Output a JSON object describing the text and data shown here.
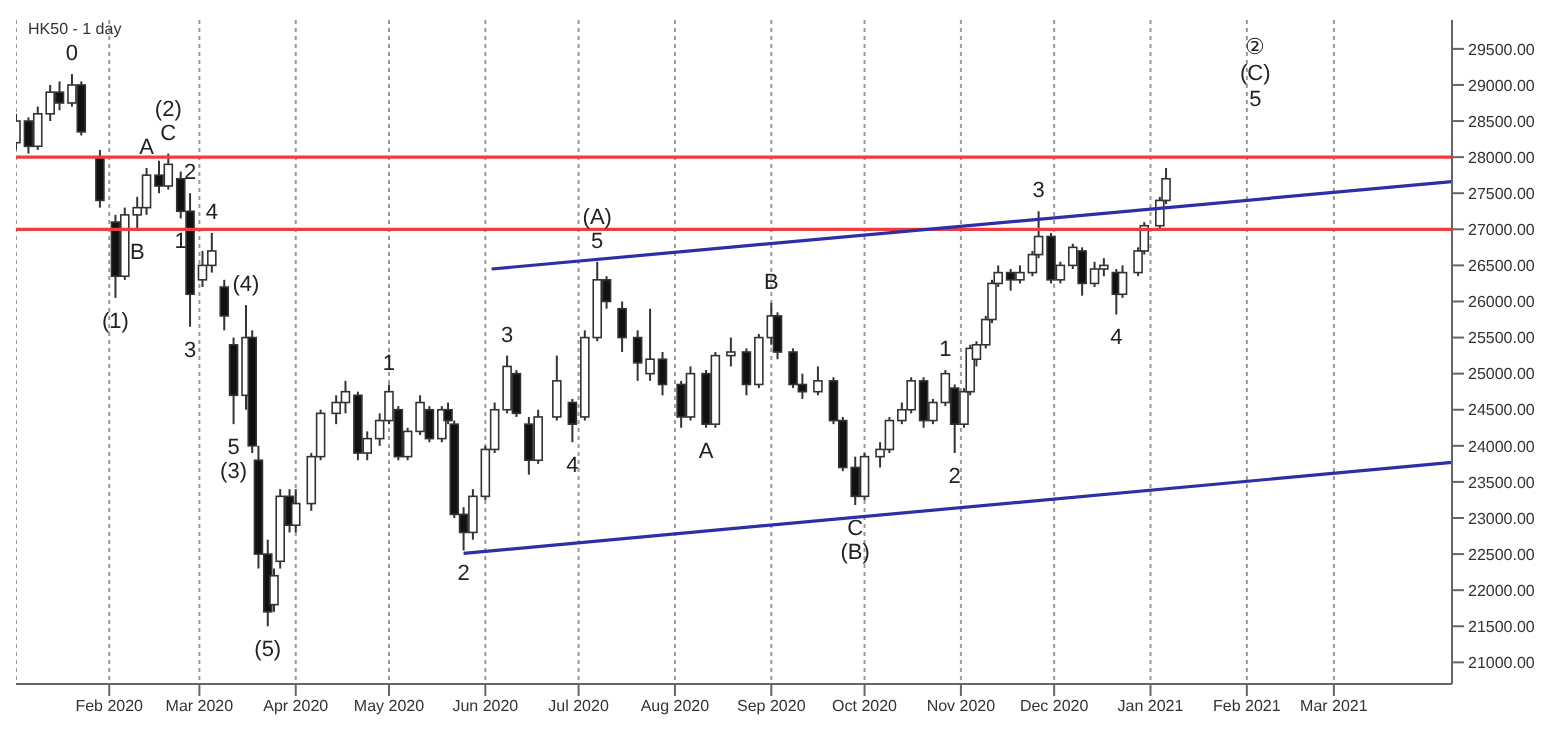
{
  "chart_data": {
    "type": "candlestick",
    "title": "HK50 - 1 day",
    "x": [
      "2020-01-02",
      "2020-01-06",
      "2020-01-09",
      "2020-01-13",
      "2020-01-16",
      "2020-01-20",
      "2020-01-23",
      "2020-01-29",
      "2020-02-03",
      "2020-02-06",
      "2020-02-10",
      "2020-02-13",
      "2020-02-17",
      "2020-02-20",
      "2020-02-24",
      "2020-02-27",
      "2020-03-02",
      "2020-03-05",
      "2020-03-09",
      "2020-03-12",
      "2020-03-16",
      "2020-03-18",
      "2020-03-20",
      "2020-03-23",
      "2020-03-25",
      "2020-03-27",
      "2020-03-30",
      "2020-04-01",
      "2020-04-06",
      "2020-04-09",
      "2020-04-14",
      "2020-04-17",
      "2020-04-21",
      "2020-04-24",
      "2020-04-28",
      "2020-05-01",
      "2020-05-04",
      "2020-05-07",
      "2020-05-11",
      "2020-05-14",
      "2020-05-18",
      "2020-05-20",
      "2020-05-22",
      "2020-05-25",
      "2020-05-28",
      "2020-06-01",
      "2020-06-04",
      "2020-06-08",
      "2020-06-11",
      "2020-06-15",
      "2020-06-18",
      "2020-06-24",
      "2020-06-29",
      "2020-07-03",
      "2020-07-07",
      "2020-07-10",
      "2020-07-15",
      "2020-07-20",
      "2020-07-24",
      "2020-07-28",
      "2020-08-03",
      "2020-08-06",
      "2020-08-11",
      "2020-08-14",
      "2020-08-19",
      "2020-08-24",
      "2020-08-28",
      "2020-09-01",
      "2020-09-03",
      "2020-09-08",
      "2020-09-11",
      "2020-09-16",
      "2020-09-21",
      "2020-09-24",
      "2020-09-28",
      "2020-10-01",
      "2020-10-06",
      "2020-10-09",
      "2020-10-13",
      "2020-10-16",
      "2020-10-20",
      "2020-10-23",
      "2020-10-27",
      "2020-10-30",
      "2020-11-02",
      "2020-11-04",
      "2020-11-06",
      "2020-11-09",
      "2020-11-11",
      "2020-11-13",
      "2020-11-17",
      "2020-11-20",
      "2020-11-24",
      "2020-11-26",
      "2020-11-30",
      "2020-12-03",
      "2020-12-07",
      "2020-12-10",
      "2020-12-14",
      "2020-12-17",
      "2020-12-21",
      "2020-12-23",
      "2020-12-28",
      "2020-12-30",
      "2021-01-04",
      "2021-01-06"
    ],
    "ohlc": [
      [
        28200,
        28600,
        28100,
        28500
      ],
      [
        28500,
        28550,
        28050,
        28150
      ],
      [
        28150,
        28700,
        28100,
        28600
      ],
      [
        28600,
        29000,
        28500,
        28900
      ],
      [
        28900,
        29050,
        28650,
        28750
      ],
      [
        28750,
        29150,
        28700,
        29000
      ],
      [
        29000,
        29050,
        28300,
        28350
      ],
      [
        28000,
        28100,
        27300,
        27400
      ],
      [
        27100,
        27200,
        26050,
        26350
      ],
      [
        26350,
        27300,
        26300,
        27200
      ],
      [
        27200,
        27450,
        27000,
        27300
      ],
      [
        27300,
        27850,
        27200,
        27750
      ],
      [
        27750,
        27950,
        27500,
        27600
      ],
      [
        27600,
        28050,
        27550,
        27900
      ],
      [
        27700,
        27800,
        27150,
        27250
      ],
      [
        27250,
        27500,
        25650,
        26100
      ],
      [
        26300,
        26700,
        26200,
        26500
      ],
      [
        26500,
        26950,
        26400,
        26700
      ],
      [
        26200,
        26300,
        25600,
        25800
      ],
      [
        25400,
        25500,
        24300,
        24700
      ],
      [
        24700,
        25950,
        24500,
        25500
      ],
      [
        25500,
        25600,
        23900,
        24000
      ],
      [
        23800,
        24000,
        22300,
        22500
      ],
      [
        22500,
        22700,
        21500,
        21700
      ],
      [
        21800,
        22300,
        21700,
        22200
      ],
      [
        22400,
        23400,
        22300,
        23300
      ],
      [
        23300,
        23400,
        22800,
        22900
      ],
      [
        22900,
        23400,
        22800,
        23200
      ],
      [
        23200,
        23900,
        23100,
        23850
      ],
      [
        23850,
        24500,
        23800,
        24450
      ],
      [
        24450,
        24700,
        24300,
        24600
      ],
      [
        24600,
        24900,
        24450,
        24750
      ],
      [
        24700,
        24750,
        23800,
        23900
      ],
      [
        23900,
        24200,
        23800,
        24100
      ],
      [
        24100,
        24450,
        24000,
        24350
      ],
      [
        24350,
        24850,
        24300,
        24750
      ],
      [
        24500,
        24550,
        23800,
        23850
      ],
      [
        23850,
        24250,
        23800,
        24200
      ],
      [
        24200,
        24700,
        24150,
        24600
      ],
      [
        24500,
        24550,
        24050,
        24100
      ],
      [
        24100,
        24550,
        24050,
        24500
      ],
      [
        24500,
        24600,
        24300,
        24350
      ],
      [
        24300,
        24350,
        23000,
        23050
      ],
      [
        23050,
        23150,
        22550,
        22800
      ],
      [
        22800,
        23400,
        22700,
        23300
      ],
      [
        23300,
        24000,
        23250,
        23950
      ],
      [
        23950,
        24600,
        23900,
        24500
      ],
      [
        24500,
        25250,
        24450,
        25100
      ],
      [
        25000,
        25050,
        24400,
        24450
      ],
      [
        24300,
        24400,
        23600,
        23800
      ],
      [
        23800,
        24500,
        23750,
        24400
      ],
      [
        24400,
        25250,
        24350,
        24900
      ],
      [
        24600,
        24650,
        24050,
        24300
      ],
      [
        24400,
        25600,
        24350,
        25500
      ],
      [
        25500,
        26550,
        25450,
        26300
      ],
      [
        26300,
        26350,
        25900,
        26000
      ],
      [
        25900,
        26000,
        25300,
        25500
      ],
      [
        25500,
        25600,
        24900,
        25150
      ],
      [
        25000,
        25900,
        24900,
        25200
      ],
      [
        25200,
        25300,
        24700,
        24850
      ],
      [
        24850,
        24900,
        24250,
        24400
      ],
      [
        24400,
        25100,
        24350,
        25000
      ],
      [
        25000,
        25050,
        24250,
        24300
      ],
      [
        24300,
        25300,
        24250,
        25250
      ],
      [
        25250,
        25500,
        25100,
        25300
      ],
      [
        25300,
        25350,
        24700,
        24850
      ],
      [
        24850,
        25550,
        24800,
        25500
      ],
      [
        25500,
        25980,
        25400,
        25800
      ],
      [
        25800,
        25850,
        25200,
        25300
      ],
      [
        25300,
        25350,
        24800,
        24850
      ],
      [
        24850,
        25000,
        24650,
        24750
      ],
      [
        24750,
        25100,
        24700,
        24900
      ],
      [
        24900,
        24950,
        24300,
        24350
      ],
      [
        24350,
        24400,
        23650,
        23700
      ],
      [
        23700,
        23850,
        23180,
        23300
      ],
      [
        23300,
        23900,
        23250,
        23850
      ],
      [
        23850,
        24050,
        23700,
        23950
      ],
      [
        23950,
        24400,
        23900,
        24350
      ],
      [
        24350,
        24600,
        24300,
        24500
      ],
      [
        24500,
        24950,
        24450,
        24900
      ],
      [
        24900,
        24950,
        24250,
        24350
      ],
      [
        24350,
        24650,
        24300,
        24600
      ],
      [
        24600,
        25050,
        24550,
        25000
      ],
      [
        24800,
        24850,
        23900,
        24300
      ],
      [
        24300,
        24800,
        24250,
        24750
      ],
      [
        24750,
        25400,
        24700,
        25350
      ],
      [
        25200,
        25450,
        25100,
        25400
      ],
      [
        25400,
        25800,
        25350,
        25750
      ],
      [
        25750,
        26300,
        25700,
        26250
      ],
      [
        26250,
        26500,
        26200,
        26400
      ],
      [
        26400,
        26450,
        26150,
        26300
      ],
      [
        26300,
        26500,
        26250,
        26400
      ],
      [
        26400,
        26700,
        26350,
        26650
      ],
      [
        26650,
        27250,
        26600,
        26900
      ],
      [
        26900,
        26950,
        26250,
        26300
      ],
      [
        26300,
        26550,
        26250,
        26500
      ],
      [
        26500,
        26800,
        26450,
        26750
      ],
      [
        26700,
        26750,
        26080,
        26250
      ],
      [
        26250,
        26550,
        26200,
        26450
      ],
      [
        26450,
        26600,
        26350,
        26500
      ],
      [
        26400,
        26450,
        25820,
        26100
      ],
      [
        26100,
        26500,
        26050,
        26400
      ],
      [
        26400,
        26750,
        26350,
        26700
      ],
      [
        26700,
        27100,
        26650,
        27050
      ],
      [
        27050,
        27450,
        27000,
        27400
      ],
      [
        27400,
        27850,
        27350,
        27700
      ]
    ],
    "series": [
      {
        "type": "line",
        "color": "#2e2ea8",
        "x": [
          "2020-06-03",
          "2021-04-08"
        ],
        "values": [
          26450,
          27660
        ]
      },
      {
        "type": "line",
        "color": "#2e2ea8",
        "x": [
          "2020-05-25",
          "2021-04-08"
        ],
        "values": [
          22510,
          23770
        ]
      }
    ],
    "ref_lines": [
      {
        "axis": "y",
        "value": 28000,
        "color": "#f03c3c"
      },
      {
        "axis": "y",
        "value": 27000,
        "color": "#f03c3c"
      }
    ],
    "xlim": [
      "2020-01-02",
      "2021-04-08"
    ],
    "xticks": [
      {
        "value": "2020-02-01",
        "label": "Feb 2020"
      },
      {
        "value": "2020-03-01",
        "label": "Mar 2020"
      },
      {
        "value": "2020-04-01",
        "label": "Apr 2020"
      },
      {
        "value": "2020-05-01",
        "label": "May 2020"
      },
      {
        "value": "2020-06-01",
        "label": "Jun 2020"
      },
      {
        "value": "2020-07-01",
        "label": "Jul 2020"
      },
      {
        "value": "2020-08-01",
        "label": "Aug 2020"
      },
      {
        "value": "2020-09-01",
        "label": "Sep 2020"
      },
      {
        "value": "2020-10-01",
        "label": "Oct 2020"
      },
      {
        "value": "2020-11-01",
        "label": "Nov 2020"
      },
      {
        "value": "2020-12-01",
        "label": "Dec 2020"
      },
      {
        "value": "2021-01-01",
        "label": "Jan 2021"
      },
      {
        "value": "2021-02-01",
        "label": "Feb 2021"
      },
      {
        "value": "2021-03-01",
        "label": "Mar 2021"
      }
    ],
    "ylim": [
      20700,
      29900
    ],
    "yticks": [
      {
        "value": 21000,
        "label": "21000.00"
      },
      {
        "value": 21500,
        "label": "21500.00"
      },
      {
        "value": 22000,
        "label": "22000.00"
      },
      {
        "value": 22500,
        "label": "22500.00"
      },
      {
        "value": 23000,
        "label": "23000.00"
      },
      {
        "value": 23500,
        "label": "23500.00"
      },
      {
        "value": 24000,
        "label": "24000.00"
      },
      {
        "value": 24500,
        "label": "24500.00"
      },
      {
        "value": 25000,
        "label": "25000.00"
      },
      {
        "value": 25500,
        "label": "25500.00"
      },
      {
        "value": 26000,
        "label": "26000.00"
      },
      {
        "value": 26500,
        "label": "26500.00"
      },
      {
        "value": 27000,
        "label": "27000.00"
      },
      {
        "value": 27500,
        "label": "27500.00"
      },
      {
        "value": 28000,
        "label": "28000.00"
      },
      {
        "value": 28500,
        "label": "28500.00"
      },
      {
        "value": 29000,
        "label": "29000.00"
      },
      {
        "value": 29500,
        "label": "29500.00"
      }
    ],
    "grid": "x",
    "annotations": [
      {
        "text": "0",
        "x": "2020-01-20",
        "y": 29150
      },
      {
        "text": "C",
        "x": "2020-02-20",
        "y": 28050
      },
      {
        "text": "(2)",
        "x": "2020-02-20",
        "y": 28050
      },
      {
        "text": "A",
        "x": "2020-02-13",
        "y": 27850
      },
      {
        "text": "2",
        "x": "2020-02-27",
        "y": 27500
      },
      {
        "text": "1",
        "x": "2020-02-24",
        "y": 27150
      },
      {
        "text": "B",
        "x": "2020-02-10",
        "y": 27000
      },
      {
        "text": "(1)",
        "x": "2020-02-03",
        "y": 26050
      },
      {
        "text": "3",
        "x": "2020-02-27",
        "y": 25650
      },
      {
        "text": "4",
        "x": "2020-03-05",
        "y": 26950
      },
      {
        "text": "(4)",
        "x": "2020-03-16",
        "y": 25950
      },
      {
        "text": "5",
        "x": "2020-03-12",
        "y": 24300
      },
      {
        "text": "(3)",
        "x": "2020-03-12",
        "y": 24300
      },
      {
        "text": "(5)",
        "x": "2020-03-23",
        "y": 21500
      },
      {
        "text": "1",
        "x": "2020-05-01",
        "y": 24850
      },
      {
        "text": "2",
        "x": "2020-05-25",
        "y": 22550
      },
      {
        "text": "3",
        "x": "2020-06-08",
        "y": 25250
      },
      {
        "text": "4",
        "x": "2020-06-29",
        "y": 24050
      },
      {
        "text": "5",
        "x": "2020-07-07",
        "y": 26550
      },
      {
        "text": "(A)",
        "x": "2020-07-07",
        "y": 26550
      },
      {
        "text": "A",
        "x": "2020-08-11",
        "y": 24250
      },
      {
        "text": "B",
        "x": "2020-09-01",
        "y": 25980
      },
      {
        "text": "C",
        "x": "2020-09-28",
        "y": 23180
      },
      {
        "text": "(B)",
        "x": "2020-09-28",
        "y": 23180
      },
      {
        "text": "1",
        "x": "2020-10-27",
        "y": 25050
      },
      {
        "text": "2",
        "x": "2020-10-30",
        "y": 23900
      },
      {
        "text": "3",
        "x": "2020-11-26",
        "y": 27250
      },
      {
        "text": "4",
        "x": "2020-12-21",
        "y": 25820
      },
      "②",
      "(C)",
      "5"
    ]
  }
}
